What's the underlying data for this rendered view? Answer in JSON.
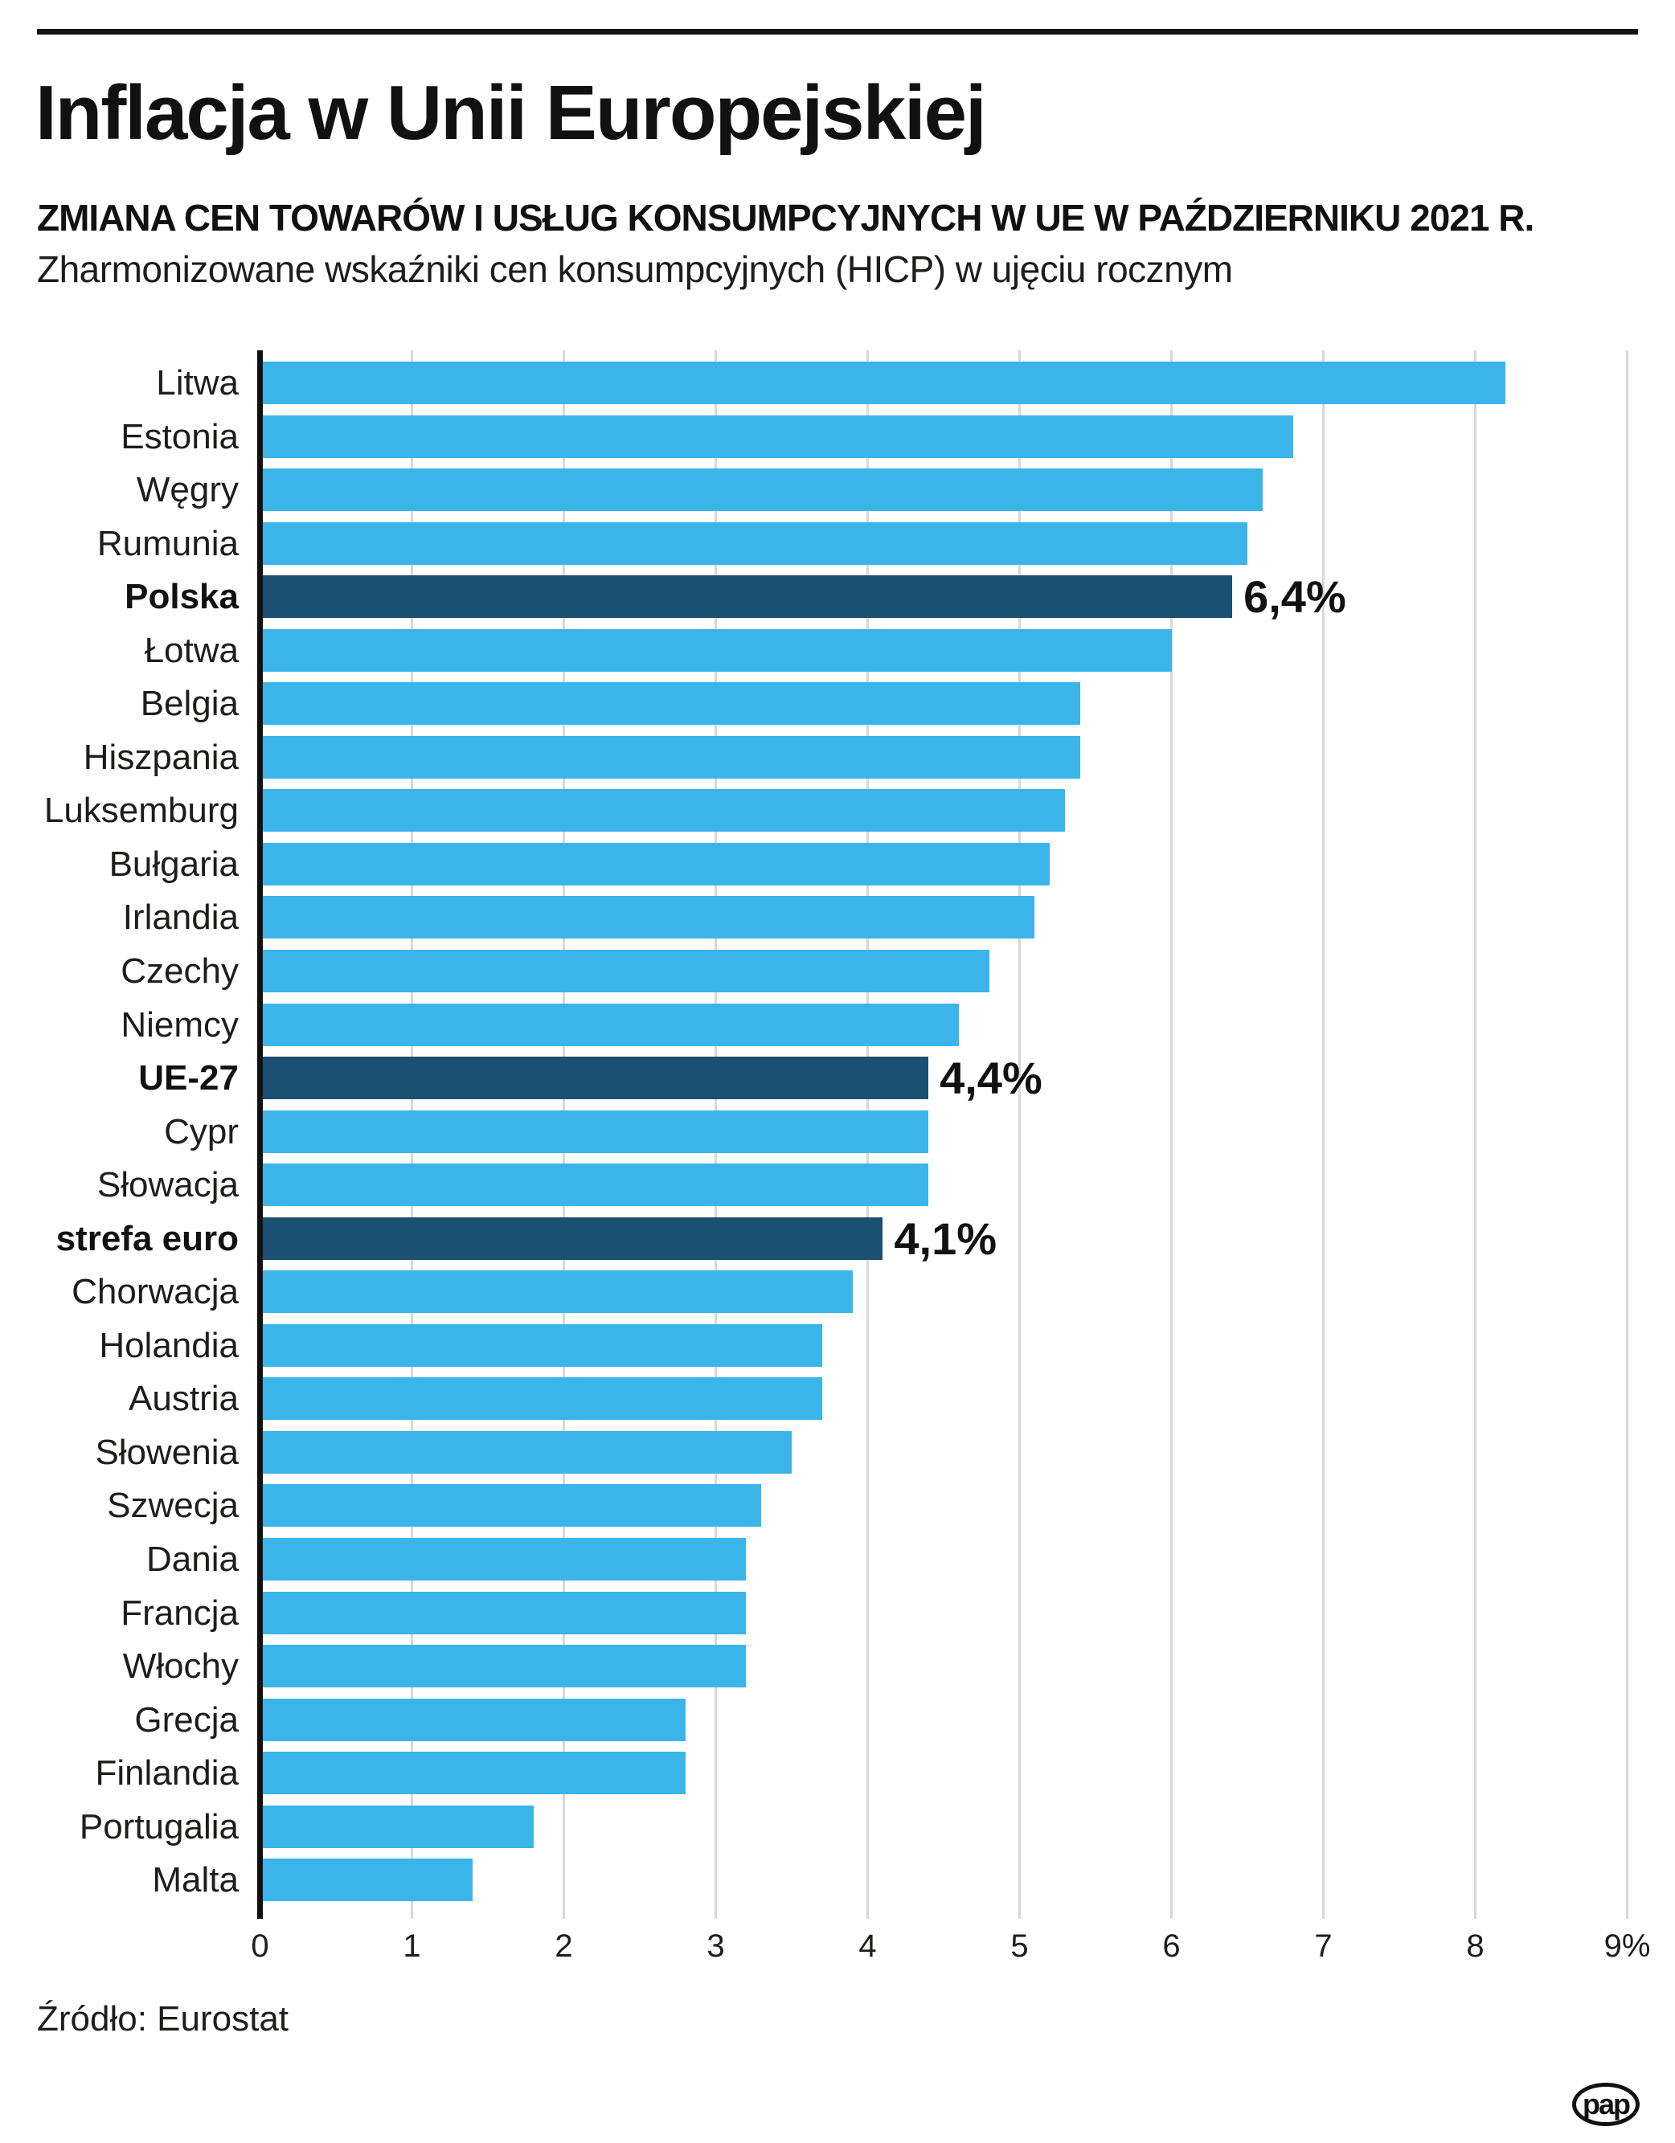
{
  "page": {
    "title": "Inflacja w Unii Europejskiej",
    "subtitle": "ZMIANA CEN TOWARÓW I USŁUG KONSUMPCYJNYCH W UE W PAŹDZIERNIKU 2021 R.",
    "subtitle2": "Zharmonizowane wskaźniki cen konsumpcyjnych (HICP) w ujęciu rocznym",
    "source": "Źródło: Eurostat",
    "logo_text": "pap"
  },
  "colors": {
    "bar": "#3BB5E9",
    "bar_highlight": "#1C5072",
    "gridline": "#D8D8D8",
    "axis": "#111111"
  },
  "chart_data": {
    "type": "bar",
    "orientation": "horizontal",
    "title": "Inflacja w Unii Europejskiej",
    "xlabel": "",
    "ylabel": "",
    "xlim": [
      0,
      9
    ],
    "grid": true,
    "unit": "%",
    "x_ticks": [
      "0",
      "1",
      "2",
      "3",
      "4",
      "5",
      "6",
      "7",
      "8",
      "9%"
    ],
    "rows": [
      {
        "label": "Litwa",
        "value": 8.2,
        "highlight": false
      },
      {
        "label": "Estonia",
        "value": 6.8,
        "highlight": false
      },
      {
        "label": "Węgry",
        "value": 6.6,
        "highlight": false
      },
      {
        "label": "Rumunia",
        "value": 6.5,
        "highlight": false
      },
      {
        "label": "Polska",
        "value": 6.4,
        "highlight": true,
        "value_label": "6,4%"
      },
      {
        "label": "Łotwa",
        "value": 6.0,
        "highlight": false
      },
      {
        "label": "Belgia",
        "value": 5.4,
        "highlight": false
      },
      {
        "label": "Hiszpania",
        "value": 5.4,
        "highlight": false
      },
      {
        "label": "Luksemburg",
        "value": 5.3,
        "highlight": false
      },
      {
        "label": "Bułgaria",
        "value": 5.2,
        "highlight": false
      },
      {
        "label": "Irlandia",
        "value": 5.1,
        "highlight": false
      },
      {
        "label": "Czechy",
        "value": 4.8,
        "highlight": false
      },
      {
        "label": "Niemcy",
        "value": 4.6,
        "highlight": false
      },
      {
        "label": "UE-27",
        "value": 4.4,
        "highlight": true,
        "value_label": "4,4%"
      },
      {
        "label": "Cypr",
        "value": 4.4,
        "highlight": false
      },
      {
        "label": "Słowacja",
        "value": 4.4,
        "highlight": false
      },
      {
        "label": "strefa euro",
        "value": 4.1,
        "highlight": true,
        "value_label": "4,1%"
      },
      {
        "label": "Chorwacja",
        "value": 3.9,
        "highlight": false
      },
      {
        "label": "Holandia",
        "value": 3.7,
        "highlight": false
      },
      {
        "label": "Austria",
        "value": 3.7,
        "highlight": false
      },
      {
        "label": "Słowenia",
        "value": 3.5,
        "highlight": false
      },
      {
        "label": "Szwecja",
        "value": 3.3,
        "highlight": false
      },
      {
        "label": "Dania",
        "value": 3.2,
        "highlight": false
      },
      {
        "label": "Francja",
        "value": 3.2,
        "highlight": false
      },
      {
        "label": "Włochy",
        "value": 3.2,
        "highlight": false
      },
      {
        "label": "Grecja",
        "value": 2.8,
        "highlight": false
      },
      {
        "label": "Finlandia",
        "value": 2.8,
        "highlight": false
      },
      {
        "label": "Portugalia",
        "value": 1.8,
        "highlight": false
      },
      {
        "label": "Malta",
        "value": 1.4,
        "highlight": false
      }
    ]
  }
}
